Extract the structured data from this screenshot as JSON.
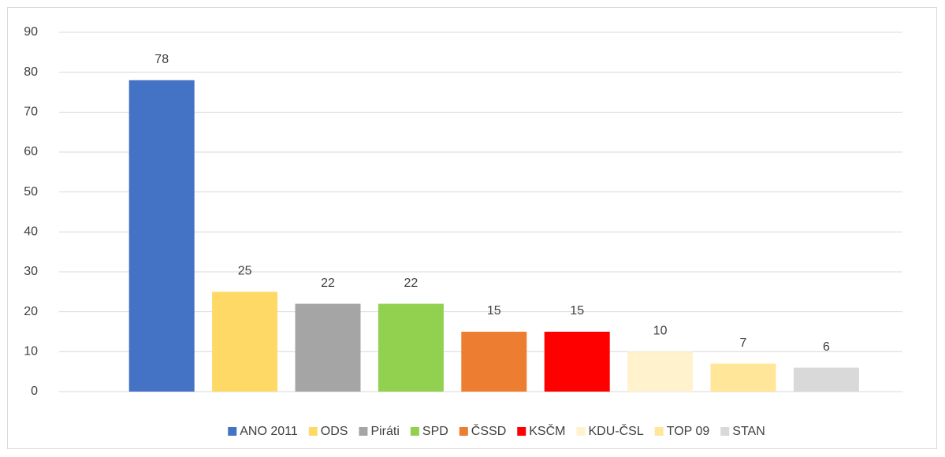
{
  "chart_data": {
    "type": "bar",
    "series": [
      {
        "name": "ANO 2011",
        "color": "#4472c4",
        "values": [
          78
        ]
      },
      {
        "name": "ODS",
        "color": "#ffd966",
        "values": [
          25
        ]
      },
      {
        "name": "Piráti",
        "color": "#a5a5a5",
        "values": [
          22
        ]
      },
      {
        "name": "SPD",
        "color": "#92d050",
        "values": [
          22
        ]
      },
      {
        "name": "ČSSD",
        "color": "#ed7d31",
        "values": [
          15
        ]
      },
      {
        "name": "KSČM",
        "color": "#ff0000",
        "values": [
          15
        ]
      },
      {
        "name": "KDU-ČSL",
        "color": "#fff2cc",
        "values": [
          10
        ]
      },
      {
        "name": "TOP 09",
        "color": "#ffe699",
        "values": [
          7
        ]
      },
      {
        "name": "STAN",
        "color": "#d9d9d9",
        "values": [
          6
        ]
      }
    ],
    "ylim": [
      0,
      90
    ],
    "yticks": [
      0,
      10,
      20,
      30,
      40,
      50,
      60,
      70,
      80,
      90
    ],
    "grid": true,
    "legend": "bottom"
  }
}
